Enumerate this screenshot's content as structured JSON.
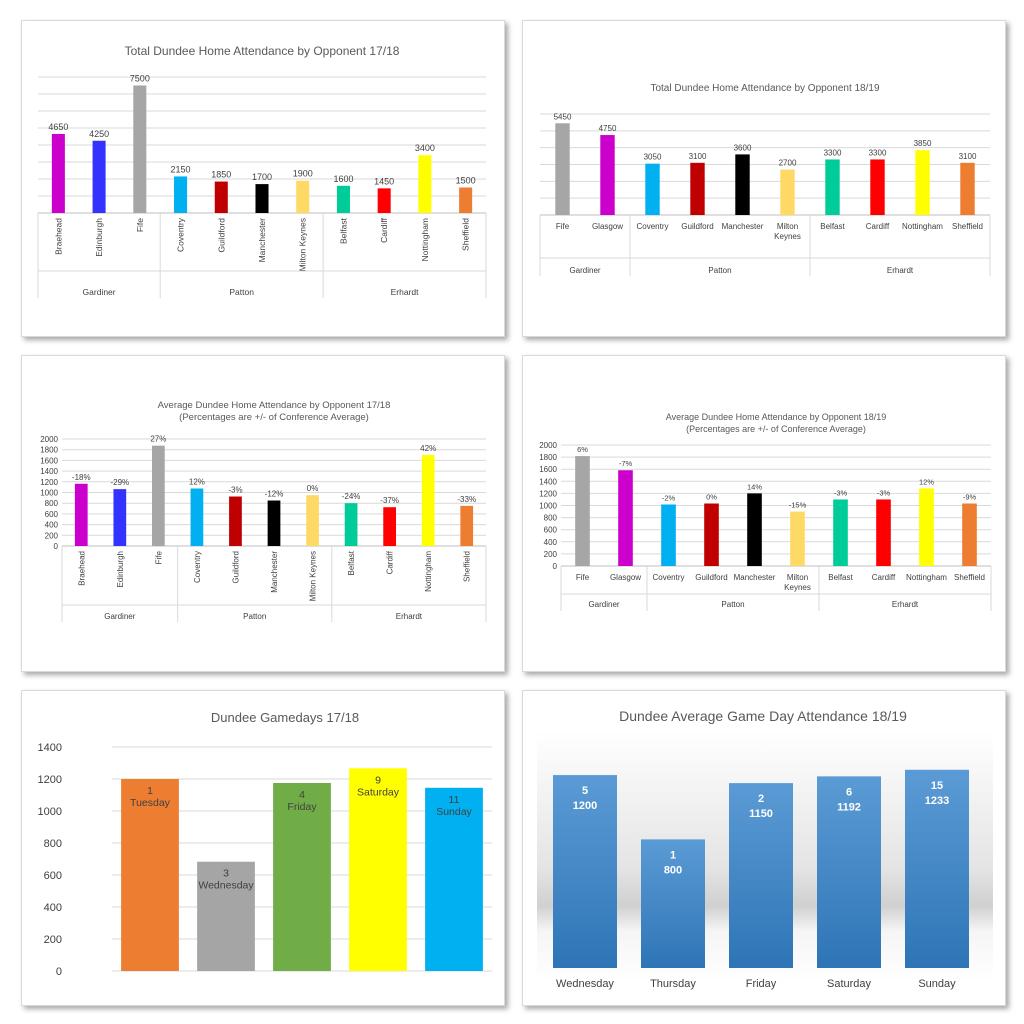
{
  "chart_data": [
    {
      "id": "c1",
      "type": "bar",
      "title": "Total Dundee Home Attendance by Opponent 17/18",
      "categories": [
        "Braehead",
        "Edinburgh",
        "Fife",
        "Coventry",
        "Guildford",
        "Manchester",
        "Milton Keynes",
        "Belfast",
        "Cardiff",
        "Nottingham",
        "Sheffield"
      ],
      "groups": [
        {
          "name": "Gardiner",
          "count": 3
        },
        {
          "name": "Patton",
          "count": 4
        },
        {
          "name": "Erhardt",
          "count": 4
        }
      ],
      "values": [
        4650,
        4250,
        7500,
        2150,
        1850,
        1700,
        1900,
        1600,
        1450,
        3400,
        1500
      ],
      "data_labels": [
        "4650",
        "4250",
        "7500",
        "2150",
        "1850",
        "1700",
        "1900",
        "1600",
        "1450",
        "3400",
        "1500"
      ],
      "colors": [
        "#cc00cc",
        "#3333ff",
        "#a6a6a6",
        "#00b0f0",
        "#c00000",
        "#000000",
        "#ffd966",
        "#00cc99",
        "#ff0000",
        "#ffff00",
        "#ed7d31"
      ],
      "ylim": [
        0,
        8000
      ],
      "grid_step": 1000
    },
    {
      "id": "c2",
      "type": "bar",
      "title": "Total Dundee Home Attendance by Opponent 18/19",
      "categories": [
        "Fife",
        "Glasgow",
        "Coventry",
        "Guildford",
        "Manchester",
        "Milton Keynes",
        "Belfast",
        "Cardiff",
        "Nottingham",
        "Sheffield"
      ],
      "groups": [
        {
          "name": "Gardiner",
          "count": 2
        },
        {
          "name": "Patton",
          "count": 4
        },
        {
          "name": "Erhardt",
          "count": 4
        }
      ],
      "values": [
        5450,
        4750,
        3050,
        3100,
        3600,
        2700,
        3300,
        3300,
        3850,
        3100
      ],
      "data_labels": [
        "5450",
        "4750",
        "3050",
        "3100",
        "3600",
        "2700",
        "3300",
        "3300",
        "3850",
        "3100"
      ],
      "colors": [
        "#a6a6a6",
        "#cc00cc",
        "#00b0f0",
        "#c00000",
        "#000000",
        "#ffd966",
        "#00cc99",
        "#ff0000",
        "#ffff00",
        "#ed7d31"
      ],
      "ylim": [
        0,
        6000
      ],
      "grid_step": 1000
    },
    {
      "id": "c3",
      "type": "bar",
      "title": "Average Dundee Home Attendance by Opponent 17/18",
      "subtitle": "(Percentages are +/- of Conference Average)",
      "categories": [
        "Braehead",
        "Edinburgh",
        "Fife",
        "Coventry",
        "Guildford",
        "Manchester",
        "Milton Keynes",
        "Belfast",
        "Cardiff",
        "Nottingham",
        "Sheffield"
      ],
      "groups": [
        {
          "name": "Gardiner",
          "count": 3
        },
        {
          "name": "Patton",
          "count": 4
        },
        {
          "name": "Erhardt",
          "count": 4
        }
      ],
      "values": [
        1163,
        1063,
        1875,
        1075,
        925,
        850,
        950,
        800,
        725,
        1700,
        750
      ],
      "data_labels": [
        "-18%",
        "-29%",
        "27%",
        "12%",
        "-3%",
        "-12%",
        "0%",
        "-24%",
        "-37%",
        "42%",
        "-33%"
      ],
      "colors": [
        "#cc00cc",
        "#3333ff",
        "#a6a6a6",
        "#00b0f0",
        "#c00000",
        "#000000",
        "#ffd966",
        "#00cc99",
        "#ff0000",
        "#ffff00",
        "#ed7d31"
      ],
      "ylim": [
        0,
        2000
      ],
      "yticks": [
        "0",
        "200",
        "400",
        "600",
        "800",
        "1000",
        "1200",
        "1400",
        "1600",
        "1800",
        "2000"
      ]
    },
    {
      "id": "c4",
      "type": "bar",
      "title": "Average Dundee Home Attendance by Opponent 18/19",
      "subtitle": "(Percentages are +/- of Conference Average)",
      "categories": [
        "Fife",
        "Glasgow",
        "Coventry",
        "Guildford",
        "Manchester",
        "Milton Keynes",
        "Belfast",
        "Cardiff",
        "Nottingham",
        "Sheffield"
      ],
      "groups": [
        {
          "name": "Gardiner",
          "count": 2
        },
        {
          "name": "Patton",
          "count": 4
        },
        {
          "name": "Erhardt",
          "count": 4
        }
      ],
      "values": [
        1817,
        1583,
        1017,
        1033,
        1200,
        900,
        1100,
        1100,
        1283,
        1033
      ],
      "data_labels": [
        "6%",
        "-7%",
        "-2%",
        "0%",
        "14%",
        "-15%",
        "-3%",
        "-3%",
        "12%",
        "-9%"
      ],
      "colors": [
        "#a6a6a6",
        "#cc00cc",
        "#00b0f0",
        "#c00000",
        "#000000",
        "#ffd966",
        "#00cc99",
        "#ff0000",
        "#ffff00",
        "#ed7d31"
      ],
      "ylim": [
        0,
        2000
      ],
      "yticks": [
        "0",
        "200",
        "400",
        "600",
        "800",
        "1000",
        "1200",
        "1400",
        "1600",
        "1800",
        "2000"
      ]
    },
    {
      "id": "c5",
      "type": "bar",
      "title": "Dundee Gamedays 17/18",
      "categories": [
        "Tuesday",
        "Wednesday",
        "Friday",
        "Saturday",
        "Sunday"
      ],
      "games": [
        "1",
        "3",
        "4",
        "9",
        "11"
      ],
      "values": [
        1200,
        683,
        1175,
        1267,
        1145
      ],
      "colors": [
        "#ed7d31",
        "#a5a5a5",
        "#70ad47",
        "#ffff00",
        "#00b0f0"
      ],
      "ylim": [
        0,
        1400
      ],
      "yticks": [
        "0",
        "200",
        "400",
        "600",
        "800",
        "1000",
        "1200",
        "1400"
      ]
    },
    {
      "id": "c6",
      "type": "bar",
      "title": "Dundee Average Game Day Attendance 18/19",
      "categories": [
        "Wednesday",
        "Thursday",
        "Friday",
        "Saturday",
        "Sunday"
      ],
      "games": [
        "5",
        "1",
        "2",
        "6",
        "15"
      ],
      "values": [
        1200,
        800,
        1150,
        1192,
        1233
      ],
      "value_labels": [
        "1200",
        "800",
        "1150",
        "1192",
        "1233"
      ],
      "color": "#3a7fc6",
      "ylim": [
        0,
        1300
      ]
    }
  ]
}
